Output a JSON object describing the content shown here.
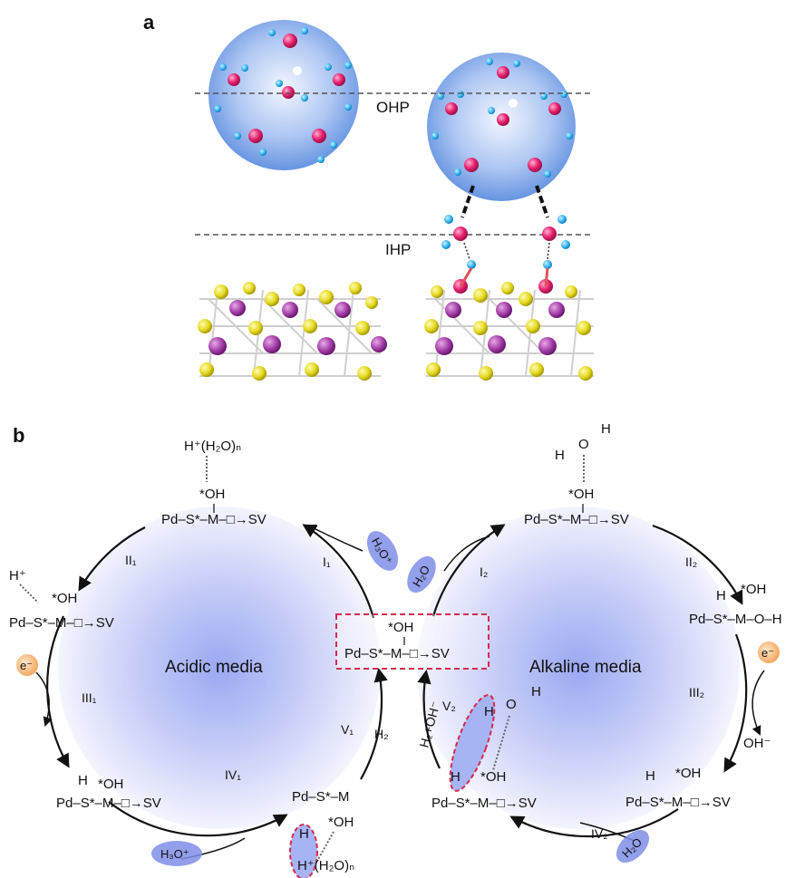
{
  "panel_a": {
    "label": "a",
    "ohp_label": "OHP",
    "ihp_label": "IHP"
  },
  "panel_b": {
    "label": "b",
    "acidic": {
      "title": "Acidic media",
      "title_color": "#1f3fe6",
      "top_h2on": "H⁺(H₂O)ₙ",
      "top_oh": "*OH",
      "top_state": "Pd–S*–M–□→SV",
      "left_hplus": "H⁺",
      "left_oh": "*OH",
      "left_state": "Pd–S*–M–□→SV",
      "bottom_h": "H",
      "bottom_oh": "*OH",
      "bottom_state": "Pd–S*–M–□→SV",
      "br_state": "Pd–S*–M",
      "br_h": "H",
      "br_oh": "*OH",
      "br_h2on": "H⁺(H₂O)ₙ",
      "electron": "e⁻",
      "steps": {
        "I": "I₁",
        "II": "II₁",
        "III": "III₁",
        "IV": "IV₁",
        "V": "V₁",
        "H2": "H₂"
      },
      "reagent_top": "H₃O⁺",
      "reagent_bottom": "H₃O⁺"
    },
    "center": {
      "oh": "*OH",
      "state": "Pd–S*–M–□→SV"
    },
    "alkaline": {
      "title": "Alkaline media",
      "title_color": "#e81cc8",
      "water_h1": "H",
      "water_o": "O",
      "water_h2": "H",
      "top_oh": "*OH",
      "top_state": "Pd–S*–M–□→SV",
      "right_h": "H",
      "right_oh": "*OH",
      "right_state": "Pd–S*–M–O–H",
      "bottom_h": "H",
      "bottom_oh": "*OH",
      "bottom_state": "Pd–S*–M–□→SV",
      "bl_h1": "H",
      "bl_o": "O",
      "bl_h2": "H",
      "bl_h3": "H",
      "bl_oh": "*OH",
      "bl_state": "Pd–S*–M–□→SV",
      "electron": "e⁻",
      "oh_minus": "OH⁻",
      "steps": {
        "I": "I₂",
        "II": "II₂",
        "III": "III₂",
        "IV": "IV₂",
        "V": "V₂"
      },
      "side_product": "H₂+OH⁻",
      "reagent_top": "H₂O",
      "reagent_bottom": "H₂O"
    }
  }
}
